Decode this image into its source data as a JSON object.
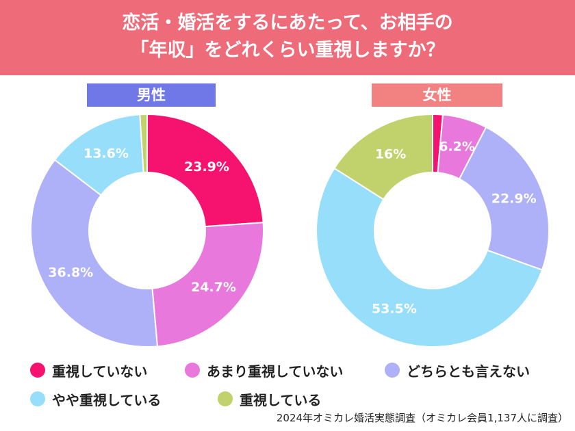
{
  "title": {
    "line1": "恋活・婚活をするにあたって、お相手の",
    "line2": "「年収」をどれくらい重視しますか？"
  },
  "colors": {
    "header_bg": "#ee6c79",
    "male_label_bg": "#7077e6",
    "female_label_bg": "#f28282"
  },
  "legend": [
    {
      "label": "重視していない",
      "color": "#f5136f"
    },
    {
      "label": "あまり重視していない",
      "color": "#e878dc"
    },
    {
      "label": "どちらとも言えない",
      "color": "#aeb0f8"
    },
    {
      "label": "やや重視している",
      "color": "#96defa"
    },
    {
      "label": "重視している",
      "color": "#c1d16b"
    }
  ],
  "source": "2024年オミカレ婚活実態調査（オミカレ会員1,137人に調査）",
  "chart_data": [
    {
      "type": "pie",
      "title": "男性",
      "donut": true,
      "categories": [
        "重視していない",
        "あまり重視していない",
        "どちらとも言えない",
        "やや重視している",
        "重視している"
      ],
      "values": [
        23.9,
        24.7,
        36.8,
        13.6,
        1.0
      ],
      "value_labels": [
        "23.9%",
        "24.7%",
        "36.8%",
        "13.6%",
        ""
      ]
    },
    {
      "type": "pie",
      "title": "女性",
      "donut": true,
      "categories": [
        "重視していない",
        "あまり重視していない",
        "どちらとも言えない",
        "やや重視している",
        "重視している"
      ],
      "values": [
        1.4,
        6.2,
        22.9,
        53.5,
        16.0
      ],
      "value_labels": [
        "",
        "6.2%",
        "22.9%",
        "53.5%",
        "16%"
      ]
    }
  ]
}
